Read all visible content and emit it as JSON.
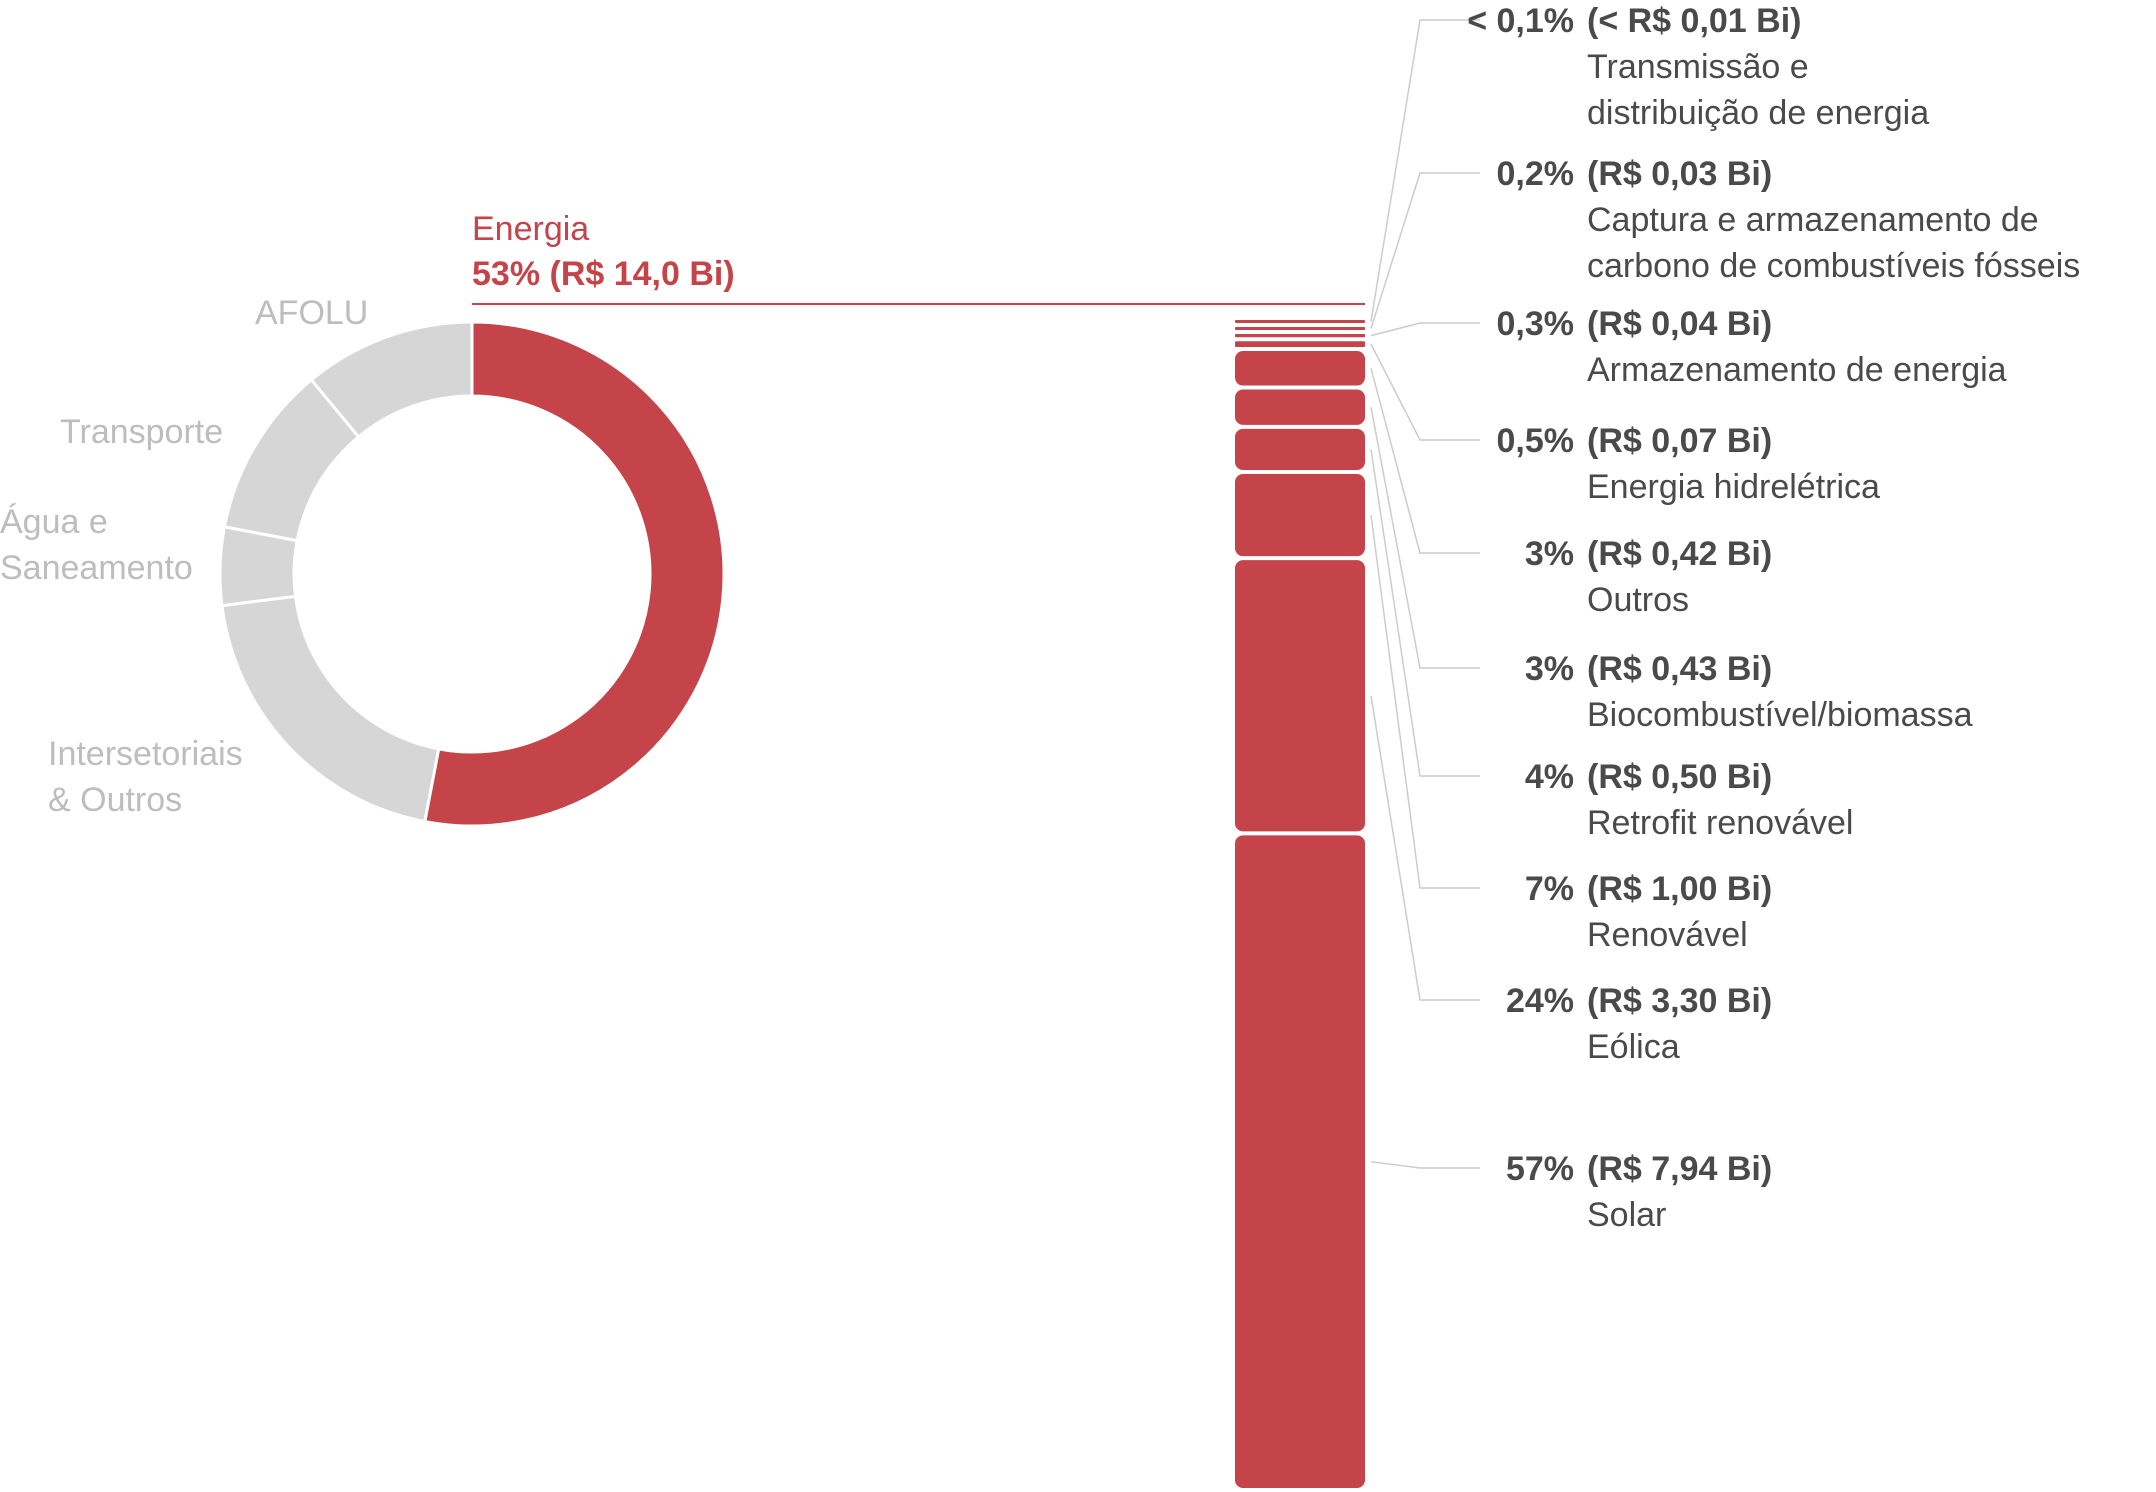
{
  "colors": {
    "energia": "#c4444a",
    "other_sectors": "#d6d6d6",
    "label_grey": "#bdbdbd",
    "text_dark": "#4a4a4a",
    "connector": "#cccccc"
  },
  "chart_data": [
    {
      "type": "pie",
      "variant": "donut",
      "highlighted": "Energia",
      "slices": [
        {
          "label": "Energia",
          "value_text": "53% (R$ 14,0 Bi)",
          "percent": 53
        },
        {
          "label": "Intersetoriais\n& Outros",
          "percent": 20
        },
        {
          "label": "Água e\nSaneamento",
          "percent": 5
        },
        {
          "label": "Transporte",
          "percent": 11
        },
        {
          "label": "AFOLU",
          "percent": 11
        }
      ]
    },
    {
      "type": "bar",
      "variant": "stacked-column",
      "parent": "Energia",
      "segments": [
        {
          "name": "Transmissão e\ndistribuição de energia",
          "pct_text": "< 0,1%",
          "value_text": "(< R$ 0,01 Bi)",
          "value_bi": 0.01
        },
        {
          "name": "Captura e armazenamento de\ncarbono de combustíveis fósseis",
          "pct_text": "0,2%",
          "value_text": "(R$ 0,03 Bi)",
          "value_bi": 0.03
        },
        {
          "name": "Armazenamento de energia",
          "pct_text": "0,3%",
          "value_text": "(R$ 0,04 Bi)",
          "value_bi": 0.04
        },
        {
          "name": "Energia hidrelétrica",
          "pct_text": "0,5%",
          "value_text": "(R$ 0,07 Bi)",
          "value_bi": 0.07
        },
        {
          "name": "Outros",
          "pct_text": "3%",
          "value_text": "(R$ 0,42 Bi)",
          "value_bi": 0.42
        },
        {
          "name": "Biocombustível/biomassa",
          "pct_text": "3%",
          "value_text": "(R$ 0,43 Bi)",
          "value_bi": 0.43
        },
        {
          "name": "Retrofit renovável",
          "pct_text": "4%",
          "value_text": "(R$ 0,50 Bi)",
          "value_bi": 0.5
        },
        {
          "name": "Renovável",
          "pct_text": "7%",
          "value_text": "(R$ 1,00 Bi)",
          "value_bi": 1.0
        },
        {
          "name": "Eólica",
          "pct_text": "24%",
          "value_text": "(R$ 3,30 Bi)",
          "value_bi": 3.3
        },
        {
          "name": "Solar",
          "pct_text": "57%",
          "value_text": "(R$ 7,94 Bi)",
          "value_bi": 7.94
        }
      ]
    }
  ]
}
